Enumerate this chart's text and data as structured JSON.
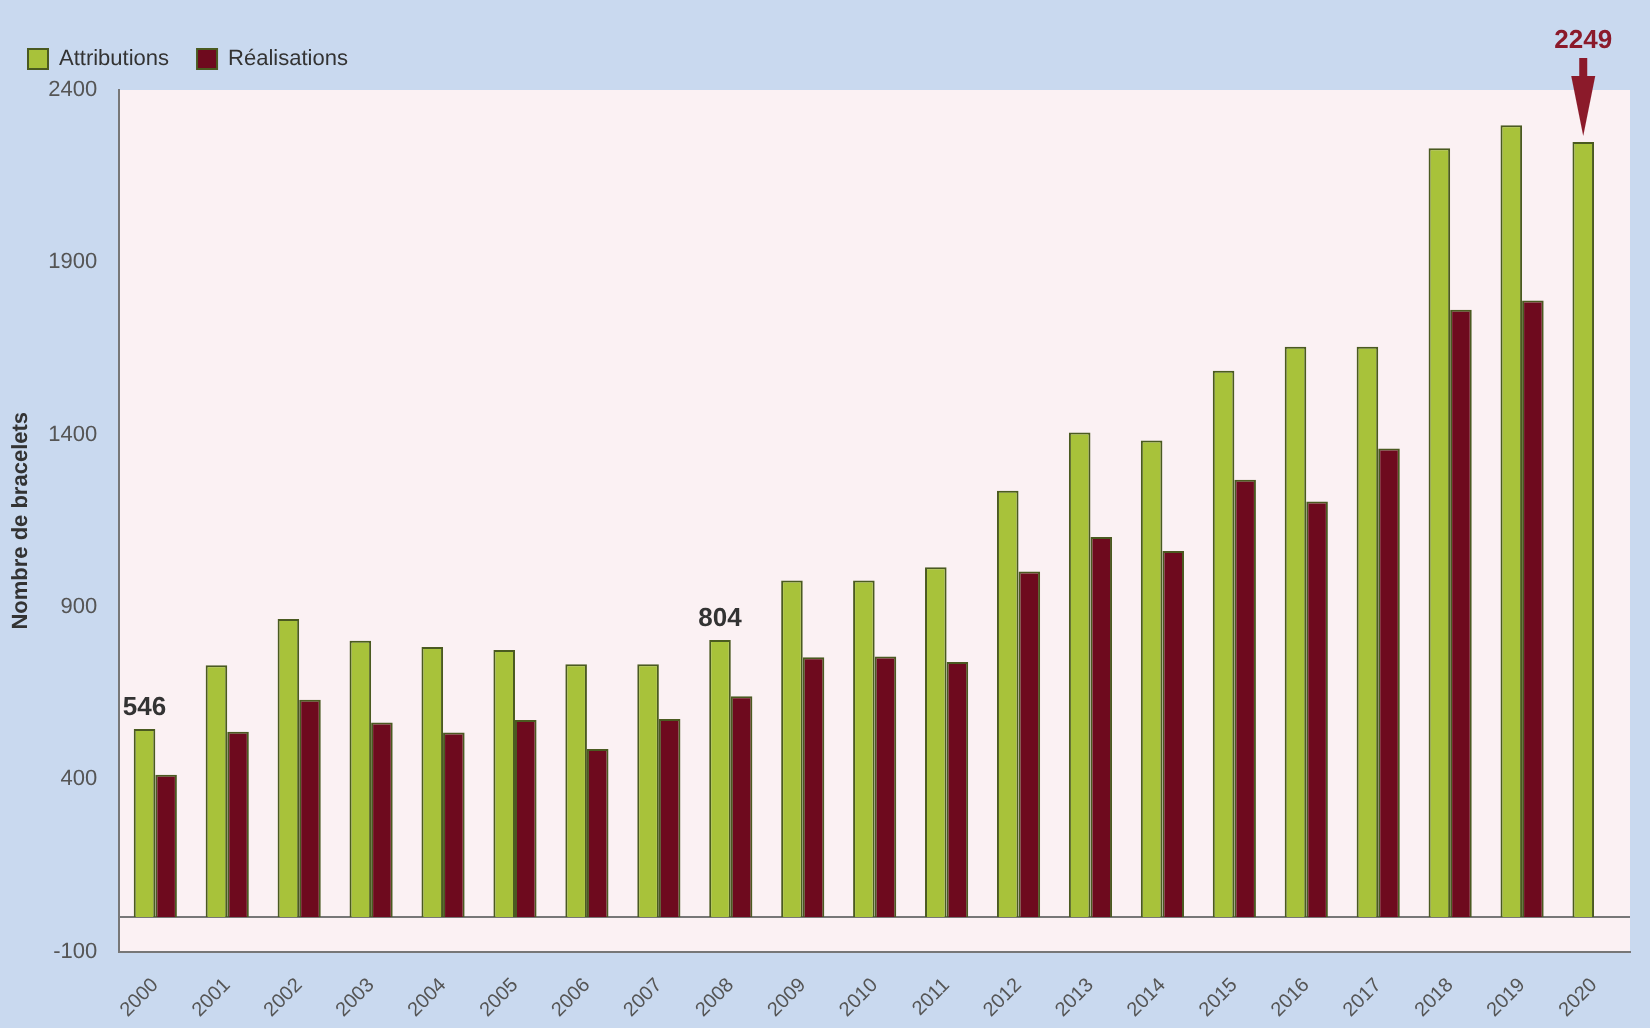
{
  "chart_data": {
    "type": "bar",
    "ylabel": "Nombre de bracelets",
    "categories": [
      "2000",
      "2001",
      "2002",
      "2003",
      "2004",
      "2005",
      "2006",
      "2007",
      "2008",
      "2009",
      "2010",
      "2011",
      "2012",
      "2013",
      "2014",
      "2015",
      "2016",
      "2017",
      "2018",
      "2019",
      "2020"
    ],
    "series": [
      {
        "name": "Attributions",
        "color": "#a8c23a",
        "values": [
          546,
          731,
          865,
          802,
          784,
          775,
          734,
          734,
          804,
          977,
          977,
          1015,
          1237,
          1406,
          1383,
          1585,
          1655,
          1655,
          2231,
          2298,
          2249
        ]
      },
      {
        "name": "Réalisations",
        "color": "#6e0a1e",
        "values": [
          413,
          538,
          631,
          565,
          536,
          572,
          488,
          575,
          641,
          754,
          756,
          740,
          1003,
          1103,
          1062,
          1269,
          1206,
          1360,
          1762,
          1789,
          null
        ]
      }
    ],
    "ylim": [
      -100,
      2400
    ],
    "yticks": [
      -100,
      400,
      900,
      1400,
      1900,
      2400
    ],
    "grid": false,
    "legend": "top left",
    "annotations": [
      {
        "text": "546",
        "x": "2000",
        "y": 546
      },
      {
        "text": "804",
        "x": "2008",
        "y": 804
      },
      {
        "text": "2249",
        "x": "2020",
        "y": 2249
      }
    ]
  }
}
